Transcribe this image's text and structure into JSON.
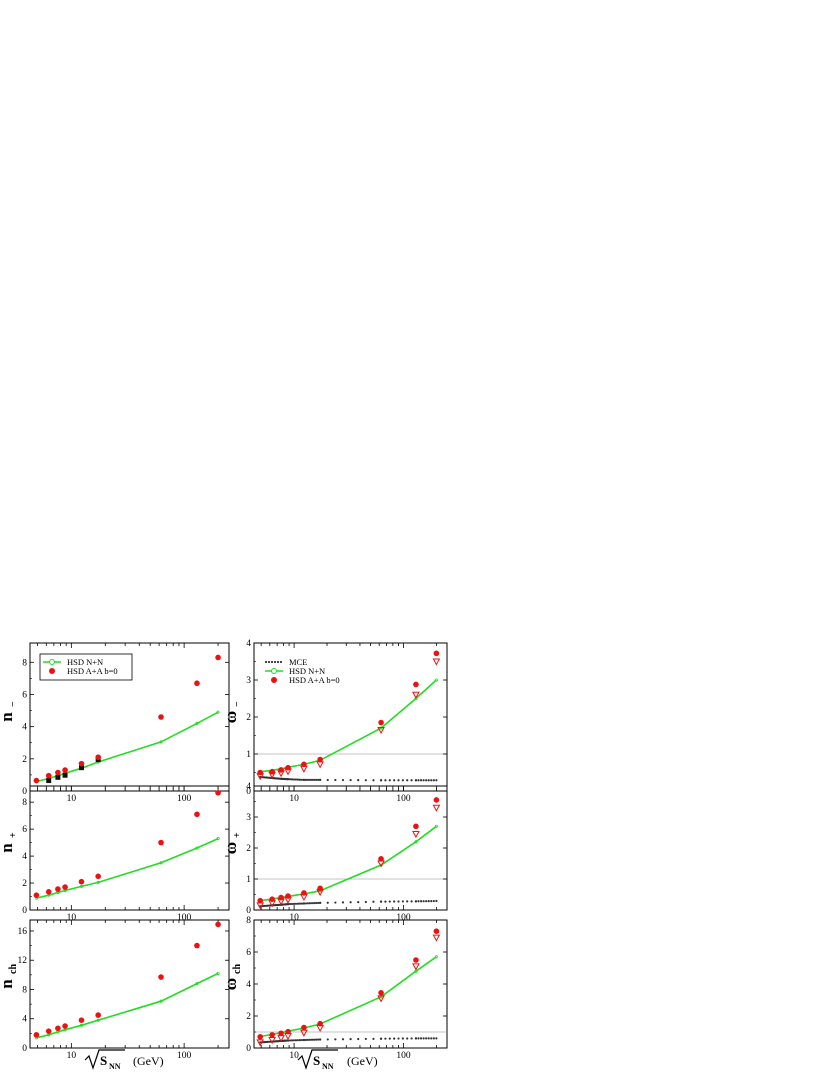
{
  "colors": {
    "hsd_nn": "#22dd22",
    "hsd_aa": "#ee1111",
    "mce": "#333333",
    "data": "#111111",
    "unity_line": "#b0b0b0"
  },
  "x_axis": {
    "label_main": "S",
    "label_sub": "NN",
    "label_unit": "(GeV)",
    "scale": "log",
    "xlim": [
      4.3,
      250
    ],
    "ticks": [
      10,
      100
    ],
    "tick_labels": [
      "10",
      "100"
    ]
  },
  "chart_data": [
    {
      "id": "n_minus",
      "type": "scatter",
      "ylabel_main": "n",
      "ylabel_sub": "−",
      "ylim": [
        0,
        9.2
      ],
      "yticks": [
        0,
        2,
        4,
        6,
        8
      ],
      "legend": [
        "HSD N+N",
        "HSD A+A b=0"
      ],
      "hsd_nn_curve": {
        "x": [
          4.9,
          6.3,
          7.6,
          8.8,
          12.3,
          17.3,
          62.4,
          130,
          200
        ],
        "y": [
          0.59,
          0.78,
          0.95,
          1.1,
          1.42,
          1.8,
          3.05,
          4.2,
          4.9
        ]
      },
      "hsd_aa": {
        "x": [
          4.9,
          6.3,
          7.6,
          8.8,
          12.3,
          17.3,
          62.4,
          130,
          200
        ],
        "y": [
          0.65,
          0.95,
          1.15,
          1.3,
          1.7,
          2.1,
          4.6,
          6.7,
          8.3
        ]
      },
      "data_points": {
        "x": [
          6.3,
          7.6,
          8.8,
          12.3,
          17.3
        ],
        "y": [
          0.65,
          0.85,
          0.98,
          1.45,
          1.95
        ]
      }
    },
    {
      "id": "omega_minus",
      "type": "scatter",
      "ylabel_main": "ω",
      "ylabel_sub": "−",
      "ylim": [
        0,
        4
      ],
      "yticks": [
        0,
        1,
        2,
        3,
        4
      ],
      "legend": [
        "MCE",
        "HSD N+N",
        "HSD A+A b=0"
      ],
      "mce": {
        "x": [
          4.9,
          6.3,
          7.6,
          8.8,
          12.3,
          17.3,
          62.4,
          130,
          200
        ],
        "y": [
          0.38,
          0.35,
          0.33,
          0.32,
          0.3,
          0.3,
          0.29,
          0.29,
          0.29
        ]
      },
      "hsd_nn_curve": {
        "x": [
          4.9,
          6.3,
          7.6,
          8.8,
          12.3,
          17.3,
          62.4,
          130,
          200
        ],
        "y": [
          0.52,
          0.56,
          0.6,
          0.64,
          0.72,
          0.83,
          1.7,
          2.5,
          3.0
        ]
      },
      "hsd_aa": {
        "x": [
          4.9,
          6.3,
          7.6,
          8.8,
          12.3,
          17.3,
          62.4,
          130,
          200
        ],
        "y": [
          0.5,
          0.52,
          0.57,
          0.63,
          0.72,
          0.85,
          1.85,
          2.88,
          3.72
        ]
      },
      "hsd_aa_alt": {
        "x": [
          4.9,
          6.3,
          7.6,
          8.8,
          12.3,
          17.3,
          62.4,
          130,
          200
        ],
        "y": [
          0.4,
          0.44,
          0.48,
          0.53,
          0.6,
          0.72,
          1.65,
          2.6,
          3.5
        ]
      }
    },
    {
      "id": "n_plus",
      "type": "scatter",
      "ylabel_main": "n",
      "ylabel_sub": "+",
      "ylim": [
        0,
        9.2
      ],
      "yticks": [
        0,
        2,
        4,
        6,
        8
      ],
      "hsd_nn_curve": {
        "x": [
          4.9,
          6.3,
          7.6,
          8.8,
          12.3,
          17.3,
          62.4,
          130,
          200
        ],
        "y": [
          0.88,
          1.1,
          1.3,
          1.45,
          1.75,
          2.05,
          3.5,
          4.6,
          5.3
        ]
      },
      "hsd_aa": {
        "x": [
          4.9,
          6.3,
          7.6,
          8.8,
          12.3,
          17.3,
          62.4,
          130,
          200
        ],
        "y": [
          1.1,
          1.35,
          1.55,
          1.7,
          2.1,
          2.5,
          5.0,
          7.1,
          8.7
        ]
      }
    },
    {
      "id": "omega_plus",
      "type": "scatter",
      "ylabel_main": "ω",
      "ylabel_sub": "+",
      "ylim": [
        0,
        4
      ],
      "yticks": [
        0,
        1,
        2,
        3,
        4
      ],
      "mce": {
        "x": [
          4.9,
          6.3,
          7.6,
          8.8,
          12.3,
          17.3,
          62.4,
          130,
          200
        ],
        "y": [
          0.12,
          0.15,
          0.17,
          0.19,
          0.21,
          0.23,
          0.27,
          0.28,
          0.29
        ]
      },
      "hsd_nn_curve": {
        "x": [
          4.9,
          6.3,
          7.6,
          8.8,
          12.3,
          17.3,
          62.4,
          130,
          200
        ],
        "y": [
          0.3,
          0.35,
          0.4,
          0.44,
          0.52,
          0.62,
          1.45,
          2.2,
          2.7
        ]
      },
      "hsd_aa": {
        "x": [
          4.9,
          6.3,
          7.6,
          8.8,
          12.3,
          17.3,
          62.4,
          130,
          200
        ],
        "y": [
          0.3,
          0.35,
          0.4,
          0.45,
          0.55,
          0.7,
          1.65,
          2.7,
          3.55
        ]
      },
      "hsd_aa_alt": {
        "x": [
          4.9,
          6.3,
          7.6,
          8.8,
          12.3,
          17.3,
          62.4,
          130,
          200
        ],
        "y": [
          0.15,
          0.22,
          0.28,
          0.33,
          0.42,
          0.58,
          1.5,
          2.45,
          3.3
        ]
      }
    },
    {
      "id": "n_ch",
      "type": "scatter",
      "ylabel_main": "n",
      "ylabel_sub": "ch",
      "ylim": [
        0,
        17.5
      ],
      "yticks": [
        0,
        4,
        8,
        12,
        16
      ],
      "hsd_nn_curve": {
        "x": [
          4.9,
          6.3,
          7.6,
          8.8,
          12.3,
          17.3,
          62.4,
          130,
          200
        ],
        "y": [
          1.4,
          1.8,
          2.2,
          2.5,
          3.1,
          3.8,
          6.4,
          8.8,
          10.2
        ]
      },
      "hsd_aa": {
        "x": [
          4.9,
          6.3,
          7.6,
          8.8,
          12.3,
          17.3,
          62.4,
          130,
          200
        ],
        "y": [
          1.8,
          2.3,
          2.7,
          3.0,
          3.8,
          4.5,
          9.7,
          14.0,
          16.9
        ]
      }
    },
    {
      "id": "omega_ch",
      "type": "scatter",
      "ylabel_main": "ω",
      "ylabel_sub": "ch",
      "ylim": [
        0,
        8
      ],
      "yticks": [
        0,
        2,
        4,
        6,
        8
      ],
      "mce": {
        "x": [
          4.9,
          6.3,
          7.6,
          8.8,
          12.3,
          17.3,
          62.4,
          130,
          200
        ],
        "y": [
          0.35,
          0.4,
          0.44,
          0.47,
          0.5,
          0.53,
          0.58,
          0.6,
          0.6
        ]
      },
      "hsd_nn_curve": {
        "x": [
          4.9,
          6.3,
          7.6,
          8.8,
          12.3,
          17.3,
          62.4,
          130,
          200
        ],
        "y": [
          0.72,
          0.85,
          0.95,
          1.05,
          1.25,
          1.5,
          3.2,
          4.8,
          5.7
        ]
      },
      "hsd_aa": {
        "x": [
          4.9,
          6.3,
          7.6,
          8.8,
          12.3,
          17.3,
          62.4,
          130,
          200
        ],
        "y": [
          0.7,
          0.82,
          0.92,
          1.02,
          1.28,
          1.52,
          3.45,
          5.5,
          7.3
        ]
      },
      "hsd_aa_alt": {
        "x": [
          4.9,
          6.3,
          7.6,
          8.8,
          12.3,
          17.3,
          62.4,
          130,
          200
        ],
        "y": [
          0.35,
          0.5,
          0.62,
          0.75,
          0.95,
          1.25,
          3.1,
          5.1,
          6.9
        ]
      }
    }
  ]
}
